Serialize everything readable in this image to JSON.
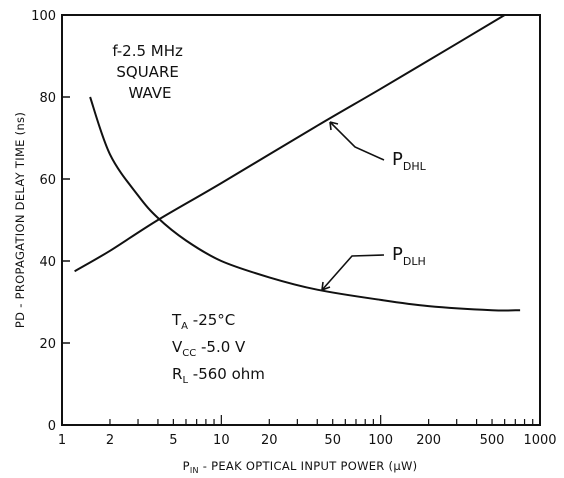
{
  "chart_data": {
    "type": "line",
    "x_scale": "log",
    "xlim": [
      1,
      1000
    ],
    "ylim": [
      0,
      100
    ],
    "xlabel": "P",
    "xlabel_sub": "IN",
    "xlabel_rest": " - PEAK OPTICAL INPUT POWER (µW)",
    "ylabel": "PD - PROPAGATION DELAY TIME (ns)",
    "x_ticks": [
      {
        "value": 1,
        "label": "1"
      },
      {
        "value": 2,
        "label": "2"
      },
      {
        "value": 5,
        "label": "5"
      },
      {
        "value": 10,
        "label": "10"
      },
      {
        "value": 20,
        "label": "20"
      },
      {
        "value": 50,
        "label": "50"
      },
      {
        "value": 100,
        "label": "100"
      },
      {
        "value": 200,
        "label": "200"
      },
      {
        "value": 500,
        "label": "500"
      },
      {
        "value": 1000,
        "label": "1000"
      }
    ],
    "y_ticks": [
      {
        "value": 0,
        "label": "0"
      },
      {
        "value": 20,
        "label": "20"
      },
      {
        "value": 40,
        "label": "40"
      },
      {
        "value": 60,
        "label": "60"
      },
      {
        "value": 80,
        "label": "80"
      },
      {
        "value": 100,
        "label": "100"
      }
    ],
    "series": [
      {
        "id": "pdhl",
        "name": "P",
        "name_sub": "DHL",
        "x": [
          1.2,
          2,
          4,
          10,
          40,
          100,
          300,
          600
        ],
        "y": [
          37.5,
          42.5,
          50,
          59,
          73,
          82,
          93,
          100
        ]
      },
      {
        "id": "pdlh",
        "name": "P",
        "name_sub": "DLH",
        "x": [
          1.5,
          2,
          3,
          4,
          6,
          10,
          20,
          40,
          100,
          200,
          500,
          750
        ],
        "y": [
          80,
          66,
          56,
          50.5,
          45,
          40,
          36,
          33,
          30.5,
          29,
          28,
          28
        ]
      }
    ],
    "annotations": {
      "top_left": [
        "f-2.5 MHz",
        "SQUARE",
        "WAVE"
      ],
      "conditions": [
        {
          "main": "T",
          "sub": "A",
          "rest": " -25°C"
        },
        {
          "main": "V",
          "sub": "CC",
          "rest": " -5.0  V"
        },
        {
          "main": "R",
          "sub": "L",
          "rest": " -560  ohm"
        }
      ]
    }
  }
}
